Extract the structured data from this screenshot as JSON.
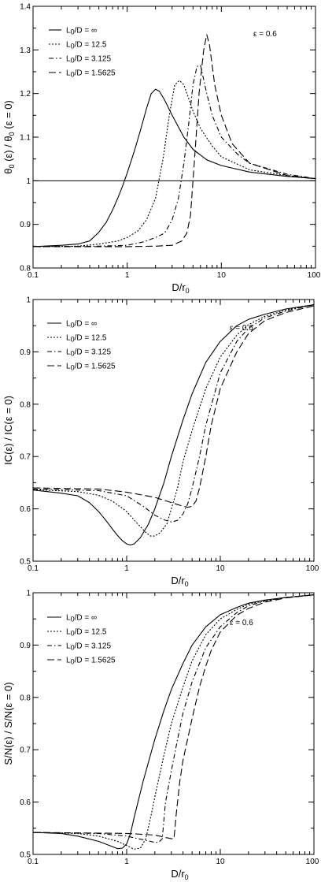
{
  "chart_data": [
    {
      "type": "line",
      "xlabel": {
        "main": "D/r",
        "sub": "0"
      },
      "ylabel": {
        "main": "θ",
        "sub": "0",
        "rest": " (ε) / θ",
        "sub2": "0",
        "rest2": " (ε = 0)"
      },
      "xscale": "log",
      "xlim": [
        0.1,
        100
      ],
      "ylim": [
        0.8,
        1.4
      ],
      "xticks": [
        {
          "v": 0.1,
          "label": "0.1"
        },
        {
          "v": 1,
          "label": "1"
        },
        {
          "v": 10,
          "label": "10"
        },
        {
          "v": 100,
          "label": "100"
        }
      ],
      "yticks": [
        {
          "v": 0.8,
          "label": "0.8"
        },
        {
          "v": 0.9,
          "label": "0.9"
        },
        {
          "v": 1.0,
          "label": "1"
        },
        {
          "v": 1.1,
          "label": "1.1"
        },
        {
          "v": 1.2,
          "label": "1.2"
        },
        {
          "v": 1.3,
          "label": "1.3"
        },
        {
          "v": 1.4,
          "label": "1.4"
        }
      ],
      "annotation": "ε = 0.6",
      "legend_position": "top-left",
      "reference_line": 1.0,
      "series": [
        {
          "name": "∞",
          "style": "solid",
          "x": [
            0.1,
            0.2,
            0.3,
            0.4,
            0.5,
            0.6,
            0.7,
            0.8,
            0.9,
            1.0,
            1.2,
            1.4,
            1.6,
            1.8,
            2.0,
            2.2,
            2.5,
            3.0,
            4.0,
            5.0,
            7.0,
            10,
            20,
            50,
            100
          ],
          "y": [
            0.849,
            0.852,
            0.855,
            0.862,
            0.882,
            0.905,
            0.933,
            0.962,
            0.99,
            1.018,
            1.07,
            1.12,
            1.165,
            1.2,
            1.21,
            1.205,
            1.185,
            1.15,
            1.1,
            1.072,
            1.048,
            1.035,
            1.02,
            1.01,
            1.005
          ]
        },
        {
          "name": "12.5",
          "style": "dotted",
          "x": [
            0.1,
            0.3,
            0.5,
            0.8,
            1.0,
            1.3,
            1.6,
            2.0,
            2.4,
            2.8,
            3.2,
            3.6,
            4.0,
            5.0,
            6.0,
            8.0,
            10,
            20,
            50,
            100
          ],
          "y": [
            0.849,
            0.85,
            0.855,
            0.862,
            0.87,
            0.885,
            0.91,
            0.96,
            1.05,
            1.15,
            1.22,
            1.23,
            1.22,
            1.16,
            1.12,
            1.08,
            1.055,
            1.025,
            1.012,
            1.005
          ]
        },
        {
          "name": "3.125",
          "style": "dashdot",
          "x": [
            0.1,
            0.5,
            1.0,
            1.5,
            2.0,
            2.5,
            3.0,
            3.5,
            4.0,
            4.5,
            5.0,
            5.5,
            6.0,
            7.0,
            8.0,
            10,
            15,
            20,
            50,
            100
          ],
          "y": [
            0.849,
            0.85,
            0.852,
            0.86,
            0.87,
            0.88,
            0.91,
            0.96,
            1.04,
            1.13,
            1.22,
            1.262,
            1.265,
            1.2,
            1.15,
            1.1,
            1.06,
            1.04,
            1.015,
            1.005
          ]
        },
        {
          "name": "1.5625",
          "style": "dashed",
          "x": [
            0.1,
            1.0,
            2.0,
            3.0,
            3.8,
            4.3,
            4.7,
            5.2,
            5.8,
            6.5,
            7.0,
            7.5,
            8.5,
            10,
            13,
            20,
            50,
            100
          ],
          "y": [
            0.849,
            0.849,
            0.85,
            0.852,
            0.862,
            0.88,
            0.92,
            1.05,
            1.2,
            1.3,
            1.335,
            1.31,
            1.22,
            1.15,
            1.085,
            1.04,
            1.012,
            1.005
          ]
        }
      ]
    },
    {
      "type": "line",
      "xlabel": {
        "main": "D/r",
        "sub": "0"
      },
      "ylabel": {
        "main": "IC(ε) / IC(ε = 0)"
      },
      "xscale": "log",
      "xlim": [
        0.1,
        100
      ],
      "ylim": [
        0.5,
        1.0
      ],
      "xticks": [
        {
          "v": 0.1,
          "label": "0.1"
        },
        {
          "v": 1,
          "label": "1"
        },
        {
          "v": 10,
          "label": "10"
        },
        {
          "v": 100,
          "label": "100"
        }
      ],
      "yticks": [
        {
          "v": 0.5,
          "label": "0.5"
        },
        {
          "v": 0.6,
          "label": "0.6"
        },
        {
          "v": 0.7,
          "label": "0.7"
        },
        {
          "v": 0.8,
          "label": "0.8"
        },
        {
          "v": 0.9,
          "label": "0.9"
        },
        {
          "v": 1.0,
          "label": "1"
        }
      ],
      "annotation": "ε = 0.6",
      "legend_position": "top-left",
      "series": [
        {
          "name": "∞",
          "style": "solid",
          "x": [
            0.1,
            0.2,
            0.3,
            0.4,
            0.5,
            0.6,
            0.7,
            0.8,
            0.9,
            1.0,
            1.1,
            1.2,
            1.4,
            1.7,
            2.0,
            2.5,
            3.0,
            4.0,
            5.0,
            7.0,
            10,
            15,
            20,
            30,
            50,
            100
          ],
          "y": [
            0.636,
            0.63,
            0.625,
            0.612,
            0.595,
            0.578,
            0.562,
            0.549,
            0.539,
            0.533,
            0.531,
            0.533,
            0.545,
            0.57,
            0.6,
            0.65,
            0.7,
            0.77,
            0.82,
            0.88,
            0.92,
            0.95,
            0.962,
            0.972,
            0.982,
            0.99
          ]
        },
        {
          "name": "12.5",
          "style": "dotted",
          "x": [
            0.1,
            0.3,
            0.5,
            0.7,
            1.0,
            1.3,
            1.6,
            1.8,
            2.0,
            2.3,
            2.7,
            3.0,
            3.5,
            4.0,
            5.0,
            7.0,
            10,
            15,
            20,
            30,
            50,
            100
          ],
          "y": [
            0.637,
            0.633,
            0.626,
            0.615,
            0.595,
            0.572,
            0.555,
            0.548,
            0.548,
            0.555,
            0.572,
            0.6,
            0.64,
            0.69,
            0.75,
            0.83,
            0.89,
            0.932,
            0.952,
            0.968,
            0.98,
            0.99
          ]
        },
        {
          "name": "3.125",
          "style": "dashdot",
          "x": [
            0.1,
            0.5,
            1.0,
            1.5,
            2.0,
            2.5,
            3.0,
            3.5,
            4.0,
            4.5,
            5.0,
            6.0,
            7.0,
            10,
            15,
            20,
            30,
            50,
            100
          ],
          "y": [
            0.638,
            0.635,
            0.625,
            0.605,
            0.588,
            0.579,
            0.575,
            0.578,
            0.59,
            0.61,
            0.64,
            0.7,
            0.76,
            0.86,
            0.92,
            0.945,
            0.965,
            0.978,
            0.99
          ]
        },
        {
          "name": "1.5625",
          "style": "dashed",
          "x": [
            0.1,
            0.5,
            1.0,
            2.0,
            3.0,
            4.0,
            4.5,
            5.0,
            5.5,
            6.0,
            7.0,
            8.0,
            10,
            15,
            20,
            30,
            50,
            100
          ],
          "y": [
            0.64,
            0.638,
            0.632,
            0.622,
            0.612,
            0.605,
            0.603,
            0.605,
            0.615,
            0.64,
            0.7,
            0.76,
            0.83,
            0.9,
            0.935,
            0.96,
            0.975,
            0.988
          ]
        }
      ]
    },
    {
      "type": "line",
      "xlabel": {
        "main": "D/r",
        "sub": "0"
      },
      "ylabel": {
        "main": "S/N(ε) / S/N(ε = 0)"
      },
      "xscale": "log",
      "xlim": [
        0.1,
        100
      ],
      "ylim": [
        0.5,
        1.0
      ],
      "xticks": [
        {
          "v": 0.1,
          "label": "0.1"
        },
        {
          "v": 1,
          "label": "1"
        },
        {
          "v": 10,
          "label": "10"
        },
        {
          "v": 100,
          "label": "100"
        }
      ],
      "yticks": [
        {
          "v": 0.5,
          "label": "0.5"
        },
        {
          "v": 0.6,
          "label": "0.6"
        },
        {
          "v": 0.7,
          "label": "0.7"
        },
        {
          "v": 0.8,
          "label": "0.8"
        },
        {
          "v": 0.9,
          "label": "0.9"
        },
        {
          "v": 1.0,
          "label": "1"
        }
      ],
      "annotation": "ε = 0.6",
      "legend_position": "top-left",
      "series": [
        {
          "name": "∞",
          "style": "solid",
          "x": [
            0.1,
            0.2,
            0.3,
            0.5,
            0.7,
            0.8,
            0.9,
            1.0,
            1.1,
            1.2,
            1.5,
            2.0,
            2.5,
            3.0,
            4.0,
            5.0,
            7.0,
            10,
            15,
            20,
            30,
            50,
            100
          ],
          "y": [
            0.542,
            0.54,
            0.535,
            0.525,
            0.515,
            0.511,
            0.512,
            0.52,
            0.54,
            0.57,
            0.64,
            0.72,
            0.775,
            0.815,
            0.865,
            0.9,
            0.935,
            0.958,
            0.972,
            0.98,
            0.986,
            0.991,
            0.996
          ]
        },
        {
          "name": "12.5",
          "style": "dotted",
          "x": [
            0.1,
            0.3,
            0.5,
            0.8,
            1.0,
            1.2,
            1.4,
            1.6,
            1.8,
            2.0,
            2.5,
            3.0,
            4.0,
            5.0,
            7.0,
            10,
            15,
            20,
            30,
            50,
            100
          ],
          "y": [
            0.542,
            0.54,
            0.535,
            0.525,
            0.517,
            0.51,
            0.512,
            0.53,
            0.57,
            0.61,
            0.69,
            0.75,
            0.82,
            0.87,
            0.92,
            0.95,
            0.968,
            0.978,
            0.985,
            0.991,
            0.996
          ]
        },
        {
          "name": "3.125",
          "style": "dashdot",
          "x": [
            0.1,
            0.5,
            1.0,
            1.5,
            2.0,
            2.2,
            2.4,
            2.6,
            3.0,
            3.5,
            4.0,
            5.0,
            7.0,
            10,
            15,
            20,
            30,
            50,
            100
          ],
          "y": [
            0.542,
            0.54,
            0.535,
            0.528,
            0.523,
            0.523,
            0.53,
            0.6,
            0.66,
            0.72,
            0.77,
            0.83,
            0.895,
            0.935,
            0.962,
            0.975,
            0.984,
            0.991,
            0.996
          ]
        },
        {
          "name": "1.5625",
          "style": "dashed",
          "x": [
            0.1,
            1.0,
            2.0,
            2.5,
            3.0,
            3.2,
            3.4,
            3.7,
            4.0,
            5.0,
            6.0,
            7.0,
            8.0,
            10,
            15,
            20,
            30,
            50,
            100
          ],
          "y": [
            0.542,
            0.54,
            0.537,
            0.533,
            0.53,
            0.53,
            0.58,
            0.64,
            0.68,
            0.76,
            0.82,
            0.86,
            0.89,
            0.925,
            0.957,
            0.97,
            0.982,
            0.99,
            0.996
          ]
        }
      ]
    }
  ],
  "legend": {
    "prefix_main": "L",
    "prefix_sub": "0",
    "prefix_rest": "/D = "
  }
}
